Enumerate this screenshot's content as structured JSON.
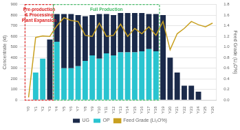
{
  "chart_data": {
    "type": "bar",
    "stacked": true,
    "grid": true,
    "legend": "bottom",
    "categories": [
      "Y0",
      "Y1",
      "Y2",
      "Y3",
      "Y4",
      "Y5",
      "Y6",
      "Y7",
      "Y8",
      "Y9",
      "Y10",
      "Y11",
      "Y12",
      "Y13",
      "Y14",
      "Y15",
      "Y16",
      "Y17",
      "Y18",
      "Y19",
      "Y20",
      "Y21",
      "Y22",
      "Y23",
      "Y24",
      "Y25",
      "Y26"
    ],
    "series": [
      {
        "name": "OP",
        "type": "bar",
        "color": "#29c4d0",
        "values": [
          0,
          260,
          390,
          0,
          550,
          300,
          300,
          320,
          370,
          420,
          390,
          440,
          420,
          450,
          450,
          450,
          460,
          480,
          460,
          0,
          0,
          0,
          0,
          0,
          0,
          0,
          0
        ]
      },
      {
        "name": "UG",
        "type": "bar",
        "color": "#1b2a4a",
        "values": [
          0,
          0,
          0,
          570,
          260,
          510,
          510,
          480,
          420,
          380,
          420,
          370,
          380,
          370,
          370,
          370,
          360,
          330,
          350,
          800,
          400,
          260,
          135,
          135,
          80,
          0,
          0
        ]
      },
      {
        "name": "Feed Grade (Li₂O%)",
        "type": "line",
        "axis": "y2",
        "color": "#c8a020",
        "values": [
          0.05,
          1.18,
          1.21,
          1.2,
          1.4,
          1.55,
          1.5,
          1.48,
          1.22,
          1.2,
          1.45,
          1.2,
          1.22,
          1.43,
          1.2,
          1.35,
          1.25,
          1.38,
          1.22,
          1.48,
          0.95,
          1.25,
          1.35,
          1.48,
          1.42,
          1.38,
          1.45
        ]
      }
    ],
    "ylabel": "Concentrate (kt)",
    "ylim": [
      0,
      900
    ],
    "yticks": [
      0,
      100,
      200,
      300,
      400,
      500,
      600,
      700,
      800,
      900
    ],
    "y2label": "Feed Grade (Li₂O%)",
    "y2lim": [
      0,
      1.8
    ],
    "y2ticks": [
      {
        "value": 0,
        "label": "0.0"
      },
      0.2,
      0.4,
      0.6,
      0.8,
      {
        "value": 1,
        "label": "1.0"
      },
      1.2,
      1.4,
      1.6,
      1.8
    ],
    "annotations": [
      {
        "text": "Pre-production\n& Processing\nPlant Expansion",
        "from": "Y0",
        "to": "Y3",
        "color": "#dd2222"
      },
      {
        "text": "Full Production",
        "from": "Y4",
        "to": "Y18",
        "color": "#44bb66"
      }
    ]
  }
}
